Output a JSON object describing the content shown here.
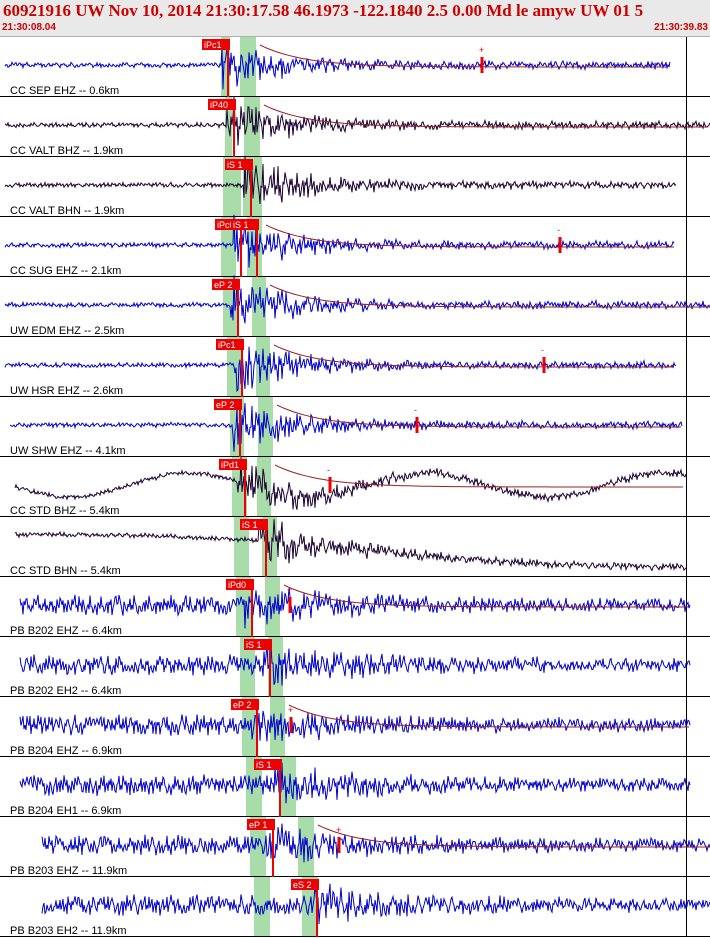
{
  "header": {
    "title": "60921916 UW Nov 10, 2014 21:30:17.58   46.1973 -122.1840  2.5 0.00 Md le amyw UW 01   5",
    "start_time": "21:30:08.04",
    "end_time": "21:30:39.83"
  },
  "colors": {
    "short_period_trace": "#0000cc",
    "broadband_trace": "#1a0033",
    "pick": "#ee0000",
    "window": "#a8dca8",
    "header_text": "#cc0000"
  },
  "traces": [
    {
      "label": "CC SEP EHZ -- 0.6km",
      "type": "short",
      "picks": [
        {
          "text": "iPc1",
          "kind": "P"
        }
      ],
      "amp": "+",
      "coda": true
    },
    {
      "label": "CC VALT BHZ -- 1.9km",
      "type": "broad",
      "picks": [
        {
          "text": "iP40",
          "kind": "P"
        }
      ],
      "amp": "",
      "coda": true
    },
    {
      "label": "CC VALT BHN -- 1.9km",
      "type": "broad",
      "picks": [
        {
          "text": "iS 1",
          "kind": "S"
        }
      ],
      "amp": "",
      "coda": false
    },
    {
      "label": "CC SUG EHZ -- 2.1km",
      "type": "short",
      "picks": [
        {
          "text": "iPc0",
          "kind": "P"
        },
        {
          "text": "iS 1",
          "kind": "S"
        }
      ],
      "amp": "-",
      "coda": true
    },
    {
      "label": "UW EDM EHZ -- 2.5km",
      "type": "short",
      "picks": [
        {
          "text": "eP 2",
          "kind": "P"
        }
      ],
      "amp": "",
      "coda": true
    },
    {
      "label": "UW HSR EHZ -- 2.6km",
      "type": "short",
      "picks": [
        {
          "text": "iPc1",
          "kind": "P"
        }
      ],
      "amp": "-",
      "coda": true
    },
    {
      "label": "UW SHW EHZ -- 4.1km",
      "type": "short",
      "picks": [
        {
          "text": "eP 2",
          "kind": "P"
        }
      ],
      "amp": "-",
      "coda": true
    },
    {
      "label": "CC STD BHZ -- 5.4km",
      "type": "broad",
      "picks": [
        {
          "text": "iPd1",
          "kind": "P"
        }
      ],
      "amp": "-",
      "coda": true
    },
    {
      "label": "CC STD BHN -- 5.4km",
      "type": "broad",
      "picks": [
        {
          "text": "iS 1",
          "kind": "S"
        }
      ],
      "amp": "",
      "coda": false
    },
    {
      "label": "PB B202 EHZ -- 6.4km",
      "type": "short",
      "picks": [
        {
          "text": "iPd0",
          "kind": "P"
        }
      ],
      "amp": "+",
      "coda": true
    },
    {
      "label": "PB B202 EH2 -- 6.4km",
      "type": "short",
      "picks": [
        {
          "text": "iS 1",
          "kind": "S"
        }
      ],
      "amp": "",
      "coda": false
    },
    {
      "label": "PB B204 EHZ -- 6.9km",
      "type": "short",
      "picks": [
        {
          "text": "eP 2",
          "kind": "P"
        }
      ],
      "amp": "+",
      "coda": true
    },
    {
      "label": "PB B204 EH1 -- 6.9km",
      "type": "short",
      "picks": [
        {
          "text": "iS 1",
          "kind": "S"
        }
      ],
      "amp": "",
      "coda": false
    },
    {
      "label": "PB B203 EHZ -- 11.9km",
      "type": "short",
      "picks": [
        {
          "text": "eP 1",
          "kind": "P"
        }
      ],
      "amp": "+",
      "coda": true
    },
    {
      "label": "PB B203 EH2 -- 11.9km",
      "type": "short",
      "picks": [
        {
          "text": "eS 2",
          "kind": "S"
        }
      ],
      "amp": "",
      "coda": false
    }
  ]
}
